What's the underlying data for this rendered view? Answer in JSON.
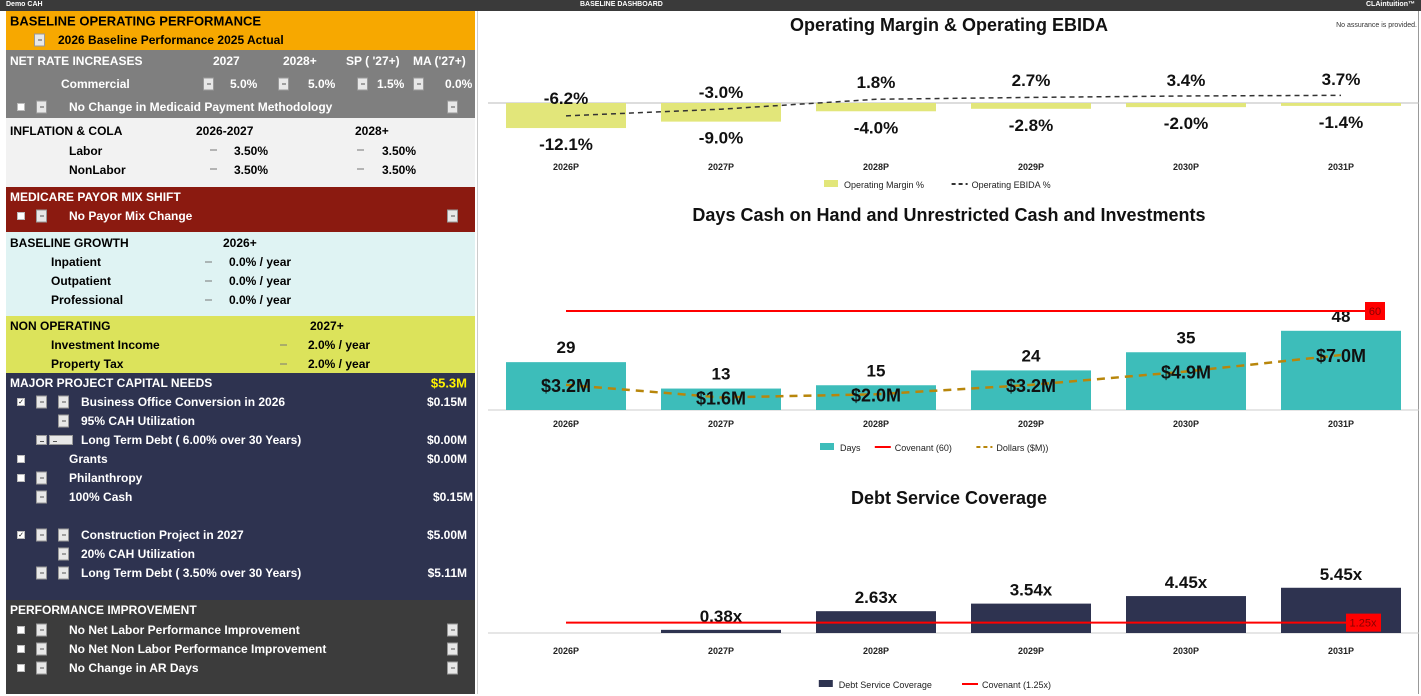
{
  "topbar": {
    "left": "Demo CAH",
    "center": "BASELINE DASHBOARD",
    "right": "CLAintuition™"
  },
  "disclaimer": "No assurance is provided.",
  "baseline": {
    "title": "BASELINE OPERATING PERFORMANCE",
    "selection": "2026 Baseline Performance 2025 Actual"
  },
  "net_rate": {
    "title": "NET RATE INCREASES",
    "cols": [
      "2027",
      "2028+",
      "SP ( '27+)",
      "MA ('27+)"
    ],
    "row_label": "Commercial",
    "values": [
      "5.0%",
      "5.0%",
      "1.5%",
      "0.0%"
    ],
    "medicaid": "No Change in Medicaid Payment Methodology"
  },
  "inflation": {
    "title": "INFLATION & COLA",
    "cols": [
      "2026-2027",
      "2028+"
    ],
    "rows": [
      {
        "label": "Labor",
        "values": [
          "3.50%",
          "3.50%"
        ]
      },
      {
        "label": "NonLabor",
        "values": [
          "3.50%",
          "3.50%"
        ]
      }
    ]
  },
  "payor": {
    "title": "MEDICARE PAYOR MIX SHIFT",
    "selection": "No Payor Mix Change"
  },
  "growth": {
    "title": "BASELINE GROWTH",
    "col": "2026+",
    "rows": [
      {
        "label": "Inpatient",
        "value": "0.0% / year"
      },
      {
        "label": "Outpatient",
        "value": "0.0% / year"
      },
      {
        "label": "Professional",
        "value": "0.0% / year"
      }
    ]
  },
  "nonop": {
    "title": "NON OPERATING",
    "col": "2027+",
    "rows": [
      {
        "label": "Investment Income",
        "value": "2.0% / year"
      },
      {
        "label": "Property Tax",
        "value": "2.0% / year"
      }
    ]
  },
  "capital": {
    "title": "MAJOR PROJECT CAPITAL NEEDS",
    "total": "$5.3M",
    "p1": {
      "name": "Business Office Conversion in 2026",
      "amount": "$0.15M",
      "checked": true,
      "util": "95% CAH Utilization",
      "debt": "Long Term Debt ( 6.00% over 30 Years)",
      "debt_amount": "$0.00M",
      "grants": "Grants",
      "grants_amount": "$0.00M",
      "phil": "Philanthropy",
      "cash": "100% Cash",
      "cash_amount": "$0.15M"
    },
    "p2": {
      "name": "Construction Project in 2027",
      "amount": "$5.00M",
      "checked": true,
      "util": "20% CAH Utilization",
      "debt": "Long Term Debt ( 3.50% over 30 Years)",
      "debt_amount": "$5.11M"
    }
  },
  "perf": {
    "title": "PERFORMANCE IMPROVEMENT",
    "items": [
      "No Net Labor Performance Improvement",
      "No Net Non Labor Performance Improvement",
      "No Change in AR Days"
    ]
  },
  "colors": {
    "orange": "#F7A800",
    "gray": "#7F7F7F",
    "red": "#8B1A10",
    "cyan": "#DFF3F3",
    "yellow": "#DCE35B",
    "navy": "#2E3350",
    "margin": "#E2E67A",
    "teal": "#3DBDBA",
    "dollars": "#B8860B",
    "covenant": "#FF0000"
  },
  "chart_data": [
    {
      "type": "bar",
      "title": "Operating Margin & Operating EBIDA",
      "categories": [
        "2026P",
        "2027P",
        "2028P",
        "2029P",
        "2030P",
        "2031P"
      ],
      "series": [
        {
          "name": "Operating Margin %",
          "type": "bar",
          "values": [
            -12.1,
            -9.0,
            -4.0,
            -2.8,
            -2.0,
            -1.4
          ],
          "labels": [
            "-12.1%",
            "-9.0%",
            "-4.0%",
            "-2.8%",
            "-2.0%",
            "-1.4%"
          ]
        },
        {
          "name": "Operating EBIDA %",
          "type": "line",
          "style": "dashed",
          "values": [
            -6.2,
            -3.0,
            1.8,
            2.7,
            3.4,
            3.7
          ],
          "labels": [
            "-6.2%",
            "-3.0%",
            "1.8%",
            "2.7%",
            "3.4%",
            "3.7%"
          ]
        }
      ],
      "legend": "bottom"
    },
    {
      "type": "bar",
      "title": "Days Cash on Hand and Unrestricted Cash and Investments",
      "categories": [
        "2026P",
        "2027P",
        "2028P",
        "2029P",
        "2030P",
        "2031P"
      ],
      "series": [
        {
          "name": "Days",
          "type": "bar",
          "values": [
            29,
            13,
            15,
            24,
            35,
            48
          ]
        },
        {
          "name": "Covenant (60)",
          "type": "line",
          "value": 60,
          "label": "60"
        },
        {
          "name": "Dollars ($M))",
          "type": "line",
          "style": "dashed",
          "values": [
            3.2,
            1.6,
            2.0,
            3.2,
            4.9,
            7.0
          ],
          "labels": [
            "$3.2M",
            "$1.6M",
            "$2.0M",
            "$3.2M",
            "$4.9M",
            "$7.0M"
          ]
        }
      ],
      "legend": "bottom"
    },
    {
      "type": "bar",
      "title": "Debt Service Coverage",
      "categories": [
        "2026P",
        "2027P",
        "2028P",
        "2029P",
        "2030P",
        "2031P"
      ],
      "series": [
        {
          "name": "Debt Service Coverage",
          "type": "bar",
          "values": [
            null,
            0.38,
            2.63,
            3.54,
            4.45,
            5.45
          ],
          "labels": [
            "",
            "0.38x",
            "2.63x",
            "3.54x",
            "4.45x",
            "5.45x"
          ]
        },
        {
          "name": "Covenant (1.25x)",
          "type": "line",
          "value": 1.25,
          "label": "1.25x"
        }
      ],
      "legend": "bottom"
    }
  ]
}
